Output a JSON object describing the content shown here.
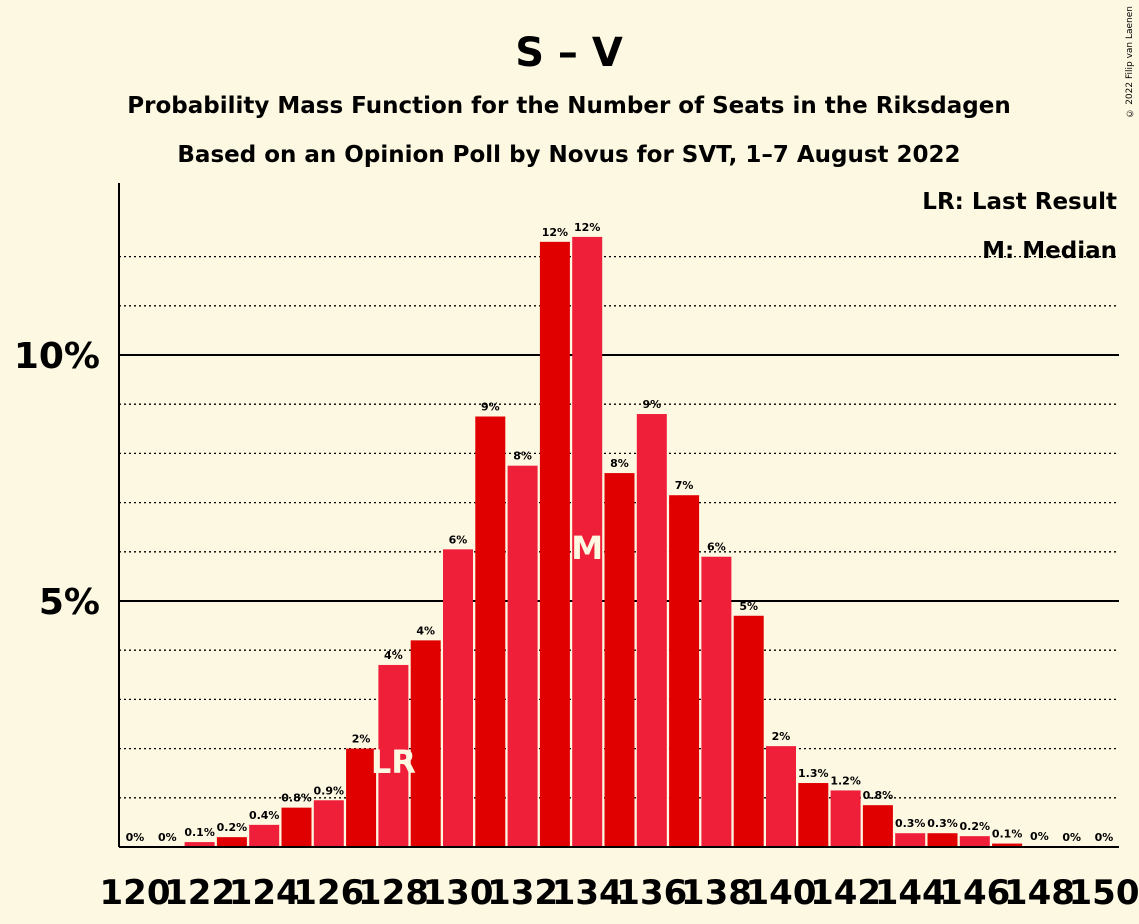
{
  "copyright": "© 2022 Filip van Laenen",
  "chart_data": {
    "type": "bar",
    "title": "S – V",
    "subtitle": "Probability Mass Function for the Number of Seats in the Riksdagen",
    "subtitle2": "Based on an Opinion Poll by Novus for SVT, 1–7 August 2022",
    "legend": [
      "LR: Last Result",
      "M: Median"
    ],
    "legend_position": "top-right",
    "ylim": [
      0,
      13.5
    ],
    "y_major_ticks": [
      {
        "value": 5,
        "label": "5%"
      },
      {
        "value": 10,
        "label": "10%"
      }
    ],
    "y_minor_ticks": [
      1,
      2,
      3,
      4,
      6,
      7,
      8,
      9,
      11,
      12
    ],
    "x_tick_labels": [
      "120",
      "122",
      "124",
      "126",
      "128",
      "130",
      "132",
      "134",
      "136",
      "138",
      "140",
      "142",
      "144",
      "146",
      "148",
      "150"
    ],
    "categories": [
      120,
      121,
      122,
      123,
      124,
      125,
      126,
      127,
      128,
      129,
      130,
      131,
      132,
      133,
      134,
      135,
      136,
      137,
      138,
      139,
      140,
      141,
      142,
      143,
      144,
      145,
      146,
      147,
      148,
      149,
      150
    ],
    "values": [
      0,
      0,
      0.1,
      0.2,
      0.45,
      0.8,
      0.95,
      2.0,
      3.7,
      4.2,
      6.05,
      8.75,
      7.75,
      12.3,
      12.4,
      7.6,
      8.8,
      7.15,
      5.9,
      4.7,
      2.05,
      1.3,
      1.15,
      0.85,
      0.28,
      0.28,
      0.22,
      0.07,
      0.02,
      0,
      0
    ],
    "data_labels": [
      "0%",
      "0%",
      "0.1%",
      "0.2%",
      "0.4%",
      "0.8%",
      "0.9%",
      "2%",
      "4%",
      "4%",
      "6%",
      "9%",
      "8%",
      "12%",
      "12%",
      "8%",
      "9%",
      "7%",
      "6%",
      "5%",
      "2%",
      "1.3%",
      "1.2%",
      "0.8%",
      "0.3%",
      "0.3%",
      "0.2%",
      "0.1%",
      "0%",
      "0%",
      "0%"
    ],
    "markers": [
      {
        "seat": 128,
        "label": "LR"
      },
      {
        "seat": 134,
        "label": "M"
      }
    ],
    "colors": {
      "dark": "#e00000",
      "light": "#ef1f3a",
      "background": "#fdf8e2",
      "marker_text": "#fdf8e2"
    }
  }
}
